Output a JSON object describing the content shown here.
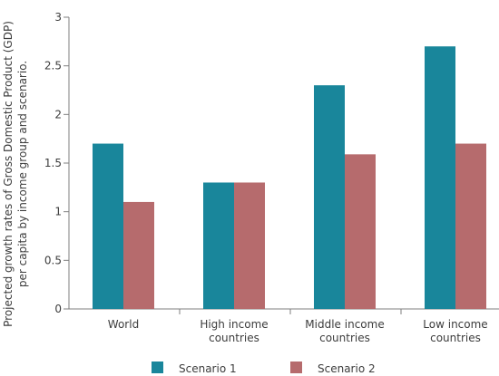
{
  "chart_data": {
    "type": "bar",
    "categories": [
      [
        "World"
      ],
      [
        "High income",
        "countries"
      ],
      [
        "Middle income",
        "countries"
      ],
      [
        "Low income",
        "countries"
      ]
    ],
    "series": [
      {
        "name": "Scenario 1",
        "values": [
          1.7,
          1.3,
          2.3,
          2.7
        ],
        "color": "#19869b"
      },
      {
        "name": "Scenario 2",
        "values": [
          1.1,
          1.3,
          1.59,
          1.7
        ],
        "color": "#b66b6d"
      }
    ],
    "ylabel": [
      "Projected growth rates of Gross Domestic Product (GDP)",
      "per capita by income group and scenario."
    ],
    "xlabel": "",
    "ylim": [
      0,
      3
    ],
    "yticks": [
      "0",
      "0.5",
      "1",
      "1.5",
      "2",
      "2.5",
      "3"
    ],
    "grid": false,
    "legend_position": "bottom"
  }
}
